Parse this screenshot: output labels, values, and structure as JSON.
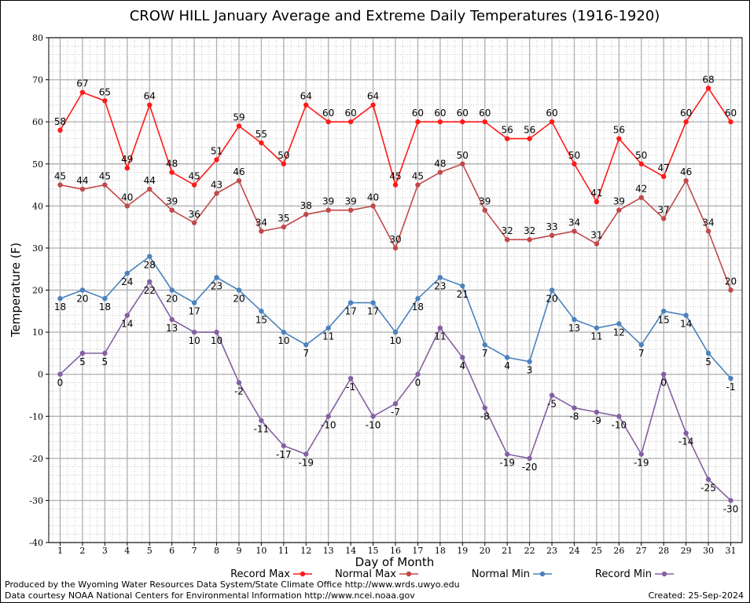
{
  "chart_data": {
    "type": "line",
    "title": "CROW HILL January Average and Extreme Daily Temperatures (1916-1920)",
    "xlabel": "Day of Month",
    "ylabel": "Temperature (F)",
    "xlim": [
      1,
      31
    ],
    "ylim": [
      -40,
      80
    ],
    "yticks": [
      -40,
      -30,
      -20,
      -10,
      0,
      10,
      20,
      30,
      40,
      50,
      60,
      70,
      80
    ],
    "grid": true,
    "categories": [
      "1",
      "2",
      "3",
      "4",
      "5",
      "6",
      "7",
      "8",
      "9",
      "10",
      "11",
      "12",
      "13",
      "14",
      "15",
      "16",
      "17",
      "18",
      "19",
      "20",
      "21",
      "22",
      "23",
      "24",
      "25",
      "26",
      "27",
      "28",
      "29",
      "30",
      "31"
    ],
    "series": [
      {
        "name": "Record Max",
        "color": "#ff1a1a",
        "label_position": "above",
        "values": [
          58,
          67,
          65,
          49,
          64,
          48,
          45,
          51,
          59,
          55,
          50,
          64,
          60,
          60,
          64,
          45,
          60,
          60,
          60,
          60,
          56,
          56,
          60,
          50,
          41,
          56,
          50,
          47,
          60,
          68,
          60
        ]
      },
      {
        "name": "Normal Max",
        "color": "#c0494a",
        "label_position": "above",
        "values": [
          45,
          44,
          45,
          40,
          44,
          39,
          36,
          43,
          46,
          34,
          35,
          38,
          39,
          39,
          40,
          30,
          45,
          48,
          50,
          39,
          32,
          32,
          33,
          34,
          31,
          39,
          42,
          37,
          46,
          34,
          20
        ]
      },
      {
        "name": "Normal Min",
        "color": "#4a82bd",
        "label_position": "below",
        "values": [
          18,
          20,
          18,
          24,
          28,
          20,
          17,
          23,
          20,
          15,
          10,
          7,
          11,
          17,
          17,
          10,
          18,
          23,
          21,
          7,
          4,
          3,
          20,
          13,
          11,
          12,
          7,
          15,
          14,
          5,
          -1
        ]
      },
      {
        "name": "Record Min",
        "color": "#8460a3",
        "label_position": "below",
        "values": [
          0,
          5,
          5,
          14,
          22,
          13,
          10,
          10,
          -2,
          -11,
          -17,
          -19,
          -10,
          -1,
          -10,
          -7,
          0,
          11,
          4,
          -8,
          -19,
          -20,
          -5,
          -8,
          -9,
          -10,
          -19,
          0,
          -14,
          -25,
          -30
        ]
      }
    ]
  },
  "footer": {
    "line1": "Produced by the Wyoming Water Resources Data System/State Climate Office http://www.wrds.uwyo.edu",
    "line2": "Data courtesy NOAA National Centers for Environmental Information http://www.ncei.noaa.gov",
    "created": "Created:  25-Sep-2024"
  }
}
